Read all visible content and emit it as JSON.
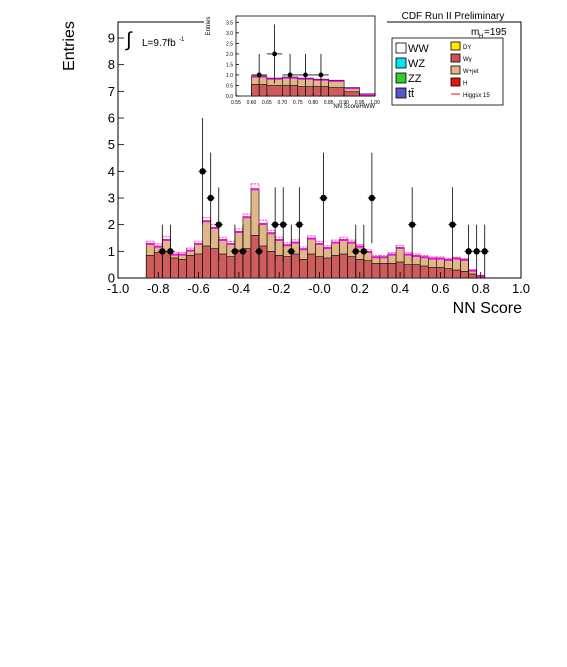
{
  "header": {
    "run_label": "CDF Run II Preliminary",
    "mass_label": "m",
    "mass_sub": "H",
    "mass_value": "=195",
    "lumi_symbol": "∫",
    "lumi_text": "L=9.7fb",
    "lumi_sup": "-1"
  },
  "legend": {
    "left": [
      {
        "label": "WW",
        "color": "#ffffff"
      },
      {
        "label": "WZ",
        "color": "#00e5ee"
      },
      {
        "label": "ZZ",
        "color": "#33cc33"
      },
      {
        "label": "tt̄",
        "color": "#5555cc"
      }
    ],
    "right": [
      {
        "label": "DY",
        "color": "#ffee00"
      },
      {
        "label": "Wγ",
        "color": "#cc5555"
      },
      {
        "label": "W+jet",
        "color": "#deb887"
      },
      {
        "label": "H",
        "color": "#ee1111"
      },
      {
        "label": "Higgsx 15",
        "color": "#ee1111"
      }
    ]
  },
  "chart_data": [
    {
      "type": "bar",
      "role": "main",
      "xlabel": "NN Score",
      "ylabel": "Entries",
      "xlim": [
        -1.0,
        1.0
      ],
      "ylim": [
        0,
        9.6
      ],
      "x_ticks": [
        "-1.0",
        "-0.8",
        "-0.6",
        "-0.4",
        "-0.2",
        "-0.0",
        "0.2",
        "0.4",
        "0.6",
        "0.8",
        "1.0"
      ],
      "y_ticks": [
        "0",
        "1",
        "2",
        "3",
        "4",
        "5",
        "6",
        "7",
        "8",
        "9"
      ],
      "bin_width": 0.04,
      "bin_start": -0.86,
      "stacks": {
        "total": [
          1.3,
          1.2,
          1.45,
          0.9,
          0.9,
          1.05,
          1.3,
          2.15,
          1.9,
          1.45,
          1.3,
          1.75,
          2.3,
          3.35,
          2.05,
          1.7,
          1.45,
          1.25,
          1.35,
          1.1,
          1.5,
          1.3,
          1.15,
          1.35,
          1.45,
          1.35,
          1.2,
          1.0,
          0.8,
          0.8,
          0.9,
          1.15,
          0.9,
          0.85,
          0.8,
          0.75,
          0.75,
          0.7,
          0.75,
          0.7,
          0.3,
          0.1
        ],
        "wgamma": [
          0.85,
          0.95,
          1.0,
          0.75,
          0.7,
          0.85,
          0.9,
          1.2,
          1.1,
          0.9,
          0.8,
          1.05,
          1.1,
          1.6,
          1.2,
          1.0,
          0.85,
          0.8,
          0.9,
          0.7,
          0.9,
          0.8,
          0.75,
          0.85,
          0.9,
          0.8,
          0.7,
          0.65,
          0.55,
          0.55,
          0.55,
          0.6,
          0.5,
          0.5,
          0.45,
          0.4,
          0.4,
          0.35,
          0.3,
          0.25,
          0.15,
          0.05
        ],
        "wjet_top": [
          0.4,
          0.4,
          0.5,
          0.35,
          0.3,
          0.35,
          0.4,
          0.55,
          0.5,
          0.4,
          0.35,
          0.45,
          0.5,
          0.9,
          0.6,
          0.45,
          0.4,
          0.35,
          0.4,
          0.3,
          0.4,
          0.35,
          0.3,
          0.35,
          0.4,
          0.35,
          0.3,
          0.3,
          0.25,
          0.25,
          0.25,
          0.3,
          0.25,
          0.25,
          0.2,
          0.2,
          0.2,
          0.2,
          0.15,
          0.15,
          0.05,
          0.0
        ]
      },
      "points": [
        {
          "x": -0.78,
          "y": 1,
          "err": 1.0
        },
        {
          "x": -0.74,
          "y": 1,
          "err": 1.0
        },
        {
          "x": -0.58,
          "y": 4,
          "err": 2.0
        },
        {
          "x": -0.54,
          "y": 3,
          "err": 1.7
        },
        {
          "x": -0.5,
          "y": 2,
          "err": 1.4
        },
        {
          "x": -0.42,
          "y": 1,
          "err": 1.0
        },
        {
          "x": -0.38,
          "y": 1,
          "err": 1.0
        },
        {
          "x": -0.3,
          "y": 1,
          "err": 1.0
        },
        {
          "x": -0.22,
          "y": 2,
          "err": 1.4
        },
        {
          "x": -0.18,
          "y": 2,
          "err": 1.4
        },
        {
          "x": -0.14,
          "y": 1,
          "err": 1.0
        },
        {
          "x": -0.1,
          "y": 2,
          "err": 1.4
        },
        {
          "x": 0.02,
          "y": 3,
          "err": 1.7
        },
        {
          "x": 0.18,
          "y": 1,
          "err": 1.0
        },
        {
          "x": 0.22,
          "y": 1,
          "err": 1.0
        },
        {
          "x": 0.26,
          "y": 3,
          "err": 1.7
        },
        {
          "x": 0.46,
          "y": 2,
          "err": 1.4
        },
        {
          "x": 0.66,
          "y": 2,
          "err": 1.4
        },
        {
          "x": 0.74,
          "y": 1,
          "err": 1.0
        },
        {
          "x": 0.78,
          "y": 1,
          "err": 1.0
        },
        {
          "x": 0.82,
          "y": 1,
          "err": 1.0
        }
      ]
    },
    {
      "type": "bar",
      "role": "inset",
      "xlabel": "NN ScoreHWW",
      "ylabel": "Entries",
      "xlim": [
        0.55,
        1.0
      ],
      "ylim": [
        0,
        3.8
      ],
      "x_ticks": [
        "0.55",
        "0.60",
        "0.65",
        "0.70",
        "0.75",
        "0.80",
        "0.85",
        "0.90",
        "0.95",
        "1.00"
      ],
      "y_ticks": [
        "0.0",
        "0.5",
        "1.0",
        "1.5",
        "2.0",
        "2.5",
        "3.0",
        "3.5"
      ],
      "bin_width": 0.05,
      "bin_start": 0.6,
      "total": [
        0.95,
        0.85,
        0.9,
        0.85,
        0.8,
        0.75,
        0.4,
        0.1
      ],
      "wgamma": [
        0.55,
        0.5,
        0.5,
        0.45,
        0.45,
        0.4,
        0.2,
        0.05
      ],
      "points": [
        {
          "x": 0.625,
          "y": 1,
          "err": 1.0
        },
        {
          "x": 0.675,
          "y": 2,
          "err": 1.4
        },
        {
          "x": 0.725,
          "y": 1,
          "err": 1.0
        },
        {
          "x": 0.775,
          "y": 1,
          "err": 1.0
        },
        {
          "x": 0.825,
          "y": 1,
          "err": 1.0
        }
      ]
    }
  ]
}
